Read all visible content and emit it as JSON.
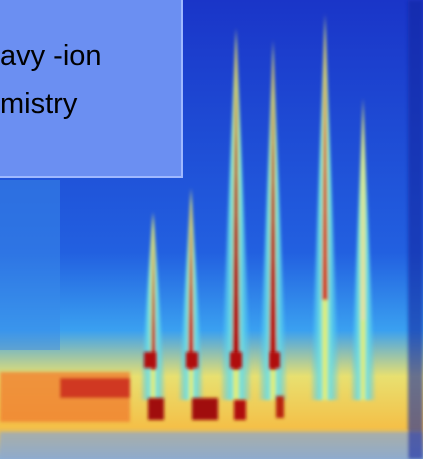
{
  "text_box": {
    "lines": [
      "avy -ion",
      "mistry"
    ]
  }
}
